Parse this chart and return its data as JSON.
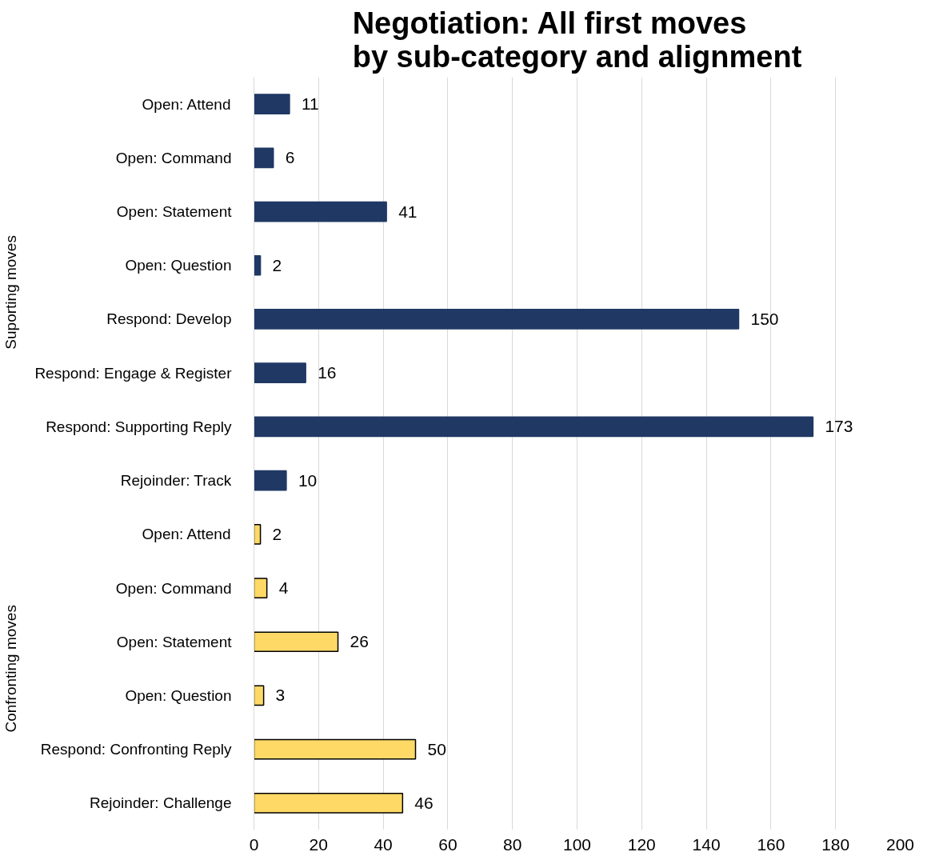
{
  "chart_data": {
    "type": "bar",
    "orientation": "horizontal",
    "title": "Negotiation: All first moves\nby sub-category and alignment",
    "categories": [
      "Open: Attend",
      "Open: Command",
      "Open: Statement",
      "Open: Question",
      "Respond: Develop",
      "Respond: Engage & Register",
      "Respond: Supporting Reply",
      "Rejoinder: Track",
      "Open: Attend",
      "Open: Command",
      "Open: Statement",
      "Open: Question",
      "Respond: Confronting Reply",
      "Rejoinder: Challenge"
    ],
    "series": [
      {
        "color": "#203864",
        "values": [
          11,
          6,
          41,
          2,
          150,
          16,
          173,
          10,
          null,
          null,
          null,
          null,
          null,
          null
        ]
      },
      {
        "color": "#ffd966",
        "values": [
          null,
          null,
          null,
          null,
          null,
          null,
          null,
          null,
          2,
          4,
          26,
          3,
          50,
          46
        ]
      }
    ],
    "xlim": [
      0,
      200
    ],
    "xticks": [
      0,
      20,
      40,
      60,
      80,
      100,
      120,
      140,
      160,
      180,
      200
    ],
    "grid": "x",
    "data_labels": true,
    "annotations": [
      "Suporting moves",
      "Confronting moves"
    ]
  }
}
